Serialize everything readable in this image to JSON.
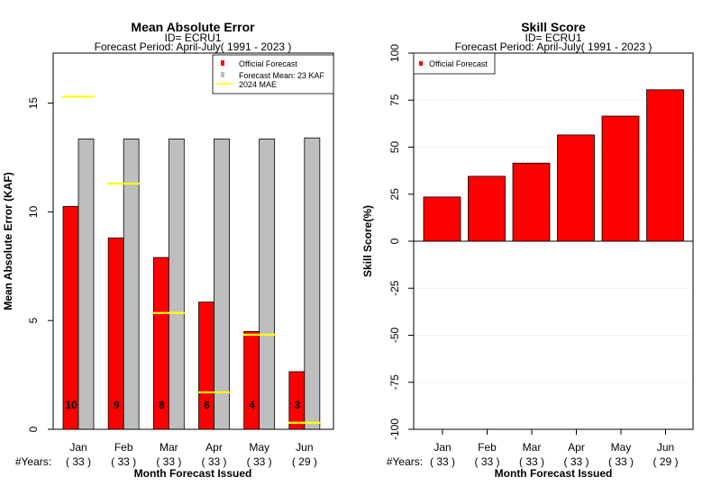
{
  "chart_data": [
    {
      "type": "bar",
      "title": "Mean Absolute Error",
      "subtitle_id": "ID= ECRU1",
      "subtitle_period": "Forecast Period: April-July( 1991 - 2023 )",
      "ylabel": "Mean Absolute Error (KAF)",
      "xlabel": "Month Forecast Issued",
      "ylim": [
        0,
        17.3
      ],
      "yticks": [
        "0",
        "5",
        "10",
        "15"
      ],
      "ytick_values": [
        0,
        5,
        10,
        15
      ],
      "categories": [
        "Jan",
        "Feb",
        "Mar",
        "Apr",
        "May",
        "Jun"
      ],
      "years_label": "#Years:",
      "years": [
        "( 33 )",
        "( 33 )",
        "( 33 )",
        "( 33 )",
        "( 33 )",
        "( 29 )"
      ],
      "series": [
        {
          "name": "Official Forecast",
          "color": "#ff0000",
          "values": [
            10.25,
            8.8,
            7.9,
            5.85,
            4.5,
            2.65
          ]
        },
        {
          "name": "Forecast Mean: 23 KAF",
          "color": "#bebebe",
          "values": [
            13.35,
            13.35,
            13.35,
            13.35,
            13.35,
            13.4
          ]
        },
        {
          "name": " 2024  MAE",
          "color": "#ffff00",
          "values": [
            15.3,
            11.3,
            5.35,
            1.7,
            4.35,
            0.3
          ]
        }
      ],
      "bar_labels": [
        "10",
        "9",
        "8",
        "6",
        "4",
        "3"
      ],
      "legend_position": "top-right",
      "grid": false
    },
    {
      "type": "bar",
      "title": "Skill Score",
      "subtitle_id": "ID= ECRU1",
      "subtitle_period": "Forecast Period: April-July( 1991 - 2023 )",
      "ylabel": "Skill Score(%)",
      "xlabel": "Month Forecast Issued",
      "ylim": [
        -100,
        100
      ],
      "yticks": [
        "-100",
        "-75",
        "-50",
        "-25",
        "0",
        "25",
        "50",
        "75",
        "100"
      ],
      "ytick_values": [
        -100,
        -75,
        -50,
        -25,
        0,
        25,
        50,
        75,
        100
      ],
      "categories": [
        "Jan",
        "Feb",
        "Mar",
        "Apr",
        "May",
        "Jun"
      ],
      "years_label": "#Years:",
      "years": [
        "( 33 )",
        "( 33 )",
        "( 33 )",
        "( 33 )",
        "( 33 )",
        "( 29 )"
      ],
      "series": [
        {
          "name": "Official Forecast",
          "color": "#ff0000",
          "values": [
            23.5,
            34.5,
            41.5,
            56.5,
            66.5,
            80.5
          ]
        }
      ],
      "legend_position": "top-left",
      "grid": true
    }
  ]
}
